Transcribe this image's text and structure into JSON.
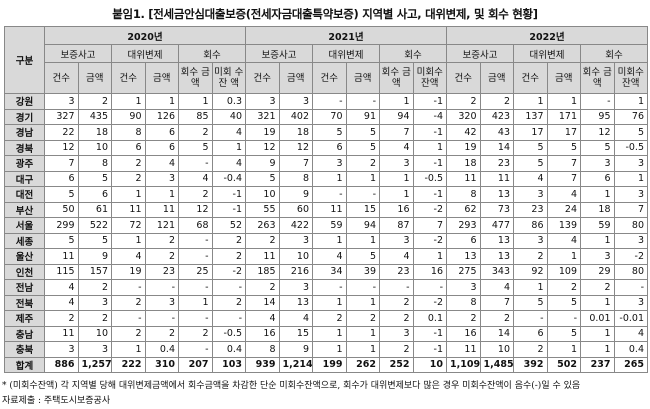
{
  "title": "붙임1. [전세금안심대출보증(전세자금대출특약보증) 지역별 사고, 대위변제, 및 회수 현황]",
  "header": {
    "region_label": "구분",
    "years": [
      "2020년",
      "2021년",
      "2022년"
    ],
    "groups": [
      "보증사고",
      "대위변제",
      "회수"
    ],
    "sub_2020": [
      "건수",
      "금액",
      "건수",
      "금액",
      "회수 금액",
      "미회 수잔 액"
    ],
    "sub_2021": [
      "건수",
      "금액",
      "건수",
      "금액",
      "회수 금액",
      "미회수 잔액"
    ],
    "sub_2022": [
      "건수",
      "금액",
      "건수",
      "금액",
      "회수 금액",
      "미회수 잔액"
    ]
  },
  "rows": [
    {
      "region": "강원",
      "values": [
        "3",
        "2",
        "1",
        "1",
        "1",
        "0.3",
        "3",
        "3",
        "-",
        "-",
        "1",
        "-1",
        "2",
        "2",
        "1",
        "1",
        "-",
        "1"
      ]
    },
    {
      "region": "경기",
      "values": [
        "327",
        "435",
        "90",
        "126",
        "85",
        "40",
        "321",
        "402",
        "70",
        "91",
        "94",
        "-4",
        "320",
        "423",
        "137",
        "171",
        "95",
        "76"
      ]
    },
    {
      "region": "경남",
      "values": [
        "22",
        "18",
        "8",
        "6",
        "2",
        "4",
        "19",
        "18",
        "5",
        "5",
        "7",
        "-1",
        "42",
        "43",
        "17",
        "17",
        "12",
        "5"
      ]
    },
    {
      "region": "경북",
      "values": [
        "12",
        "10",
        "6",
        "6",
        "5",
        "1",
        "12",
        "12",
        "6",
        "5",
        "4",
        "1",
        "19",
        "14",
        "5",
        "5",
        "5",
        "-0.5"
      ]
    },
    {
      "region": "광주",
      "values": [
        "7",
        "8",
        "2",
        "4",
        "-",
        "4",
        "9",
        "7",
        "3",
        "2",
        "3",
        "-1",
        "18",
        "23",
        "5",
        "7",
        "3",
        "3"
      ]
    },
    {
      "region": "대구",
      "values": [
        "6",
        "5",
        "2",
        "3",
        "4",
        "-0.4",
        "5",
        "8",
        "1",
        "1",
        "1",
        "-0.5",
        "11",
        "11",
        "4",
        "7",
        "6",
        "1"
      ]
    },
    {
      "region": "대전",
      "values": [
        "5",
        "6",
        "1",
        "1",
        "2",
        "-1",
        "10",
        "9",
        "-",
        "-",
        "1",
        "-1",
        "8",
        "13",
        "3",
        "4",
        "1",
        "3"
      ]
    },
    {
      "region": "부산",
      "values": [
        "50",
        "61",
        "11",
        "11",
        "12",
        "-1",
        "55",
        "60",
        "11",
        "15",
        "16",
        "-2",
        "62",
        "73",
        "23",
        "24",
        "18",
        "7"
      ]
    },
    {
      "region": "서울",
      "values": [
        "299",
        "522",
        "72",
        "121",
        "68",
        "52",
        "263",
        "422",
        "59",
        "94",
        "87",
        "7",
        "293",
        "477",
        "86",
        "139",
        "59",
        "80"
      ]
    },
    {
      "region": "세종",
      "values": [
        "5",
        "5",
        "1",
        "2",
        "-",
        "2",
        "2",
        "3",
        "1",
        "1",
        "3",
        "-2",
        "6",
        "13",
        "3",
        "4",
        "1",
        "3"
      ]
    },
    {
      "region": "울산",
      "values": [
        "11",
        "9",
        "4",
        "2",
        "-",
        "2",
        "11",
        "10",
        "4",
        "5",
        "4",
        "1",
        "13",
        "13",
        "2",
        "1",
        "3",
        "-2"
      ]
    },
    {
      "region": "인천",
      "values": [
        "115",
        "157",
        "19",
        "23",
        "25",
        "-2",
        "185",
        "216",
        "34",
        "39",
        "23",
        "16",
        "275",
        "343",
        "92",
        "109",
        "29",
        "80"
      ]
    },
    {
      "region": "전남",
      "values": [
        "4",
        "2",
        "-",
        "-",
        "-",
        "-",
        "2",
        "3",
        "-",
        "-",
        "-",
        "-",
        "3",
        "4",
        "1",
        "2",
        "2",
        "-"
      ]
    },
    {
      "region": "전북",
      "values": [
        "4",
        "3",
        "2",
        "3",
        "1",
        "2",
        "14",
        "13",
        "1",
        "1",
        "2",
        "-2",
        "8",
        "7",
        "5",
        "5",
        "1",
        "3"
      ]
    },
    {
      "region": "제주",
      "values": [
        "2",
        "2",
        "-",
        "-",
        "-",
        "-",
        "4",
        "4",
        "2",
        "2",
        "2",
        "0.1",
        "2",
        "2",
        "-",
        "-",
        "0.01",
        "-0.01"
      ]
    },
    {
      "region": "충남",
      "values": [
        "11",
        "10",
        "2",
        "2",
        "2",
        "-0.5",
        "16",
        "15",
        "1",
        "1",
        "3",
        "-1",
        "16",
        "14",
        "6",
        "5",
        "1",
        "4"
      ]
    },
    {
      "region": "충북",
      "values": [
        "3",
        "3",
        "1",
        "0.4",
        "-",
        "0.4",
        "8",
        "9",
        "1",
        "1",
        "2",
        "-1",
        "11",
        "10",
        "2",
        "1",
        "1",
        "0.4"
      ]
    }
  ],
  "total": {
    "region": "합계",
    "values": [
      "886",
      "1,257",
      "222",
      "310",
      "207",
      "103",
      "939",
      "1,214",
      "199",
      "262",
      "252",
      "10",
      "1,109",
      "1,485",
      "392",
      "502",
      "237",
      "265"
    ]
  },
  "notes": {
    "footnote": "* (미회수잔액) 각 지역별 당해 대위변제금액에서 회수금액을 차감한 단순 미회수잔액으로, 회수가 대위변제보다 많은 경우 미회수잔액이 음수(-)일 수 있음",
    "source": "자료제출 : 주택도시보증공사"
  }
}
